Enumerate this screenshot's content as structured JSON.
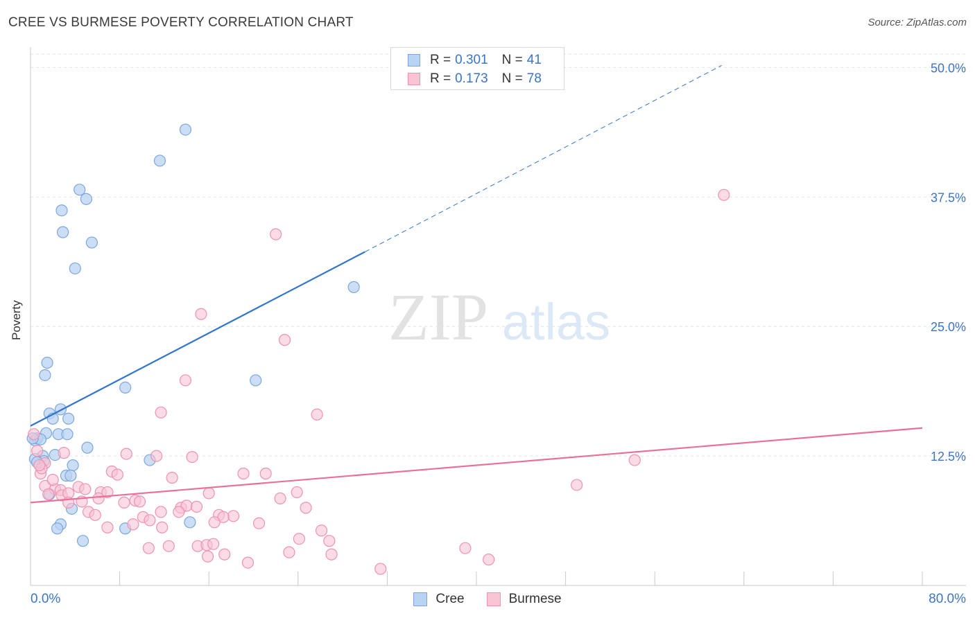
{
  "title": "CREE VS BURMESE POVERTY CORRELATION CHART",
  "source": "Source: ZipAtlas.com",
  "watermark": {
    "zip": "ZIP",
    "atlas": "atlas"
  },
  "legend": {
    "r_label": "R =",
    "n_label": "N =",
    "cree": {
      "r": "0.301",
      "n": "41"
    },
    "burmese": {
      "r": "0.173",
      "n": "78"
    }
  },
  "colors": {
    "cree_fill": "#b9d3f2",
    "cree_stroke": "#7ba7dd",
    "cree_line": "#2f74cf",
    "burmese_fill": "#f8c3d3",
    "burmese_stroke": "#ee92b0",
    "burmese_line": "#e8709a",
    "axis_text": "#3b74c9",
    "grid": "#e3e3e3"
  },
  "chart_data": {
    "type": "scatter",
    "title": "CREE VS BURMESE POVERTY CORRELATION CHART",
    "xlabel": "",
    "ylabel": "Poverty",
    "xlim": [
      0,
      80
    ],
    "ylim": [
      0,
      52.5
    ],
    "x_tick_labels": {
      "left": "0.0%",
      "right": "80.0%"
    },
    "y_ticks": [
      {
        "value": 12.5,
        "label": "12.5%"
      },
      {
        "value": 25.0,
        "label": "25.0%"
      },
      {
        "value": 37.5,
        "label": "37.5%"
      },
      {
        "value": 50.0,
        "label": "50.0%"
      }
    ],
    "legend_labels": [
      "Cree",
      "Burmese"
    ],
    "series": [
      {
        "name": "Cree",
        "trend": {
          "x0": 0,
          "y0": 15.4,
          "x1": 30.0,
          "y1": 32.2,
          "x_dash_end": 62.0,
          "y_dash_end": 50.2
        },
        "points": [
          [
            13.9,
            44.0
          ],
          [
            11.6,
            41.0
          ],
          [
            4.4,
            38.2
          ],
          [
            5.0,
            37.3
          ],
          [
            2.8,
            36.2
          ],
          [
            2.9,
            34.1
          ],
          [
            5.5,
            33.1
          ],
          [
            4.0,
            30.6
          ],
          [
            29.0,
            28.8
          ],
          [
            1.5,
            21.5
          ],
          [
            1.3,
            20.3
          ],
          [
            8.5,
            19.1
          ],
          [
            20.2,
            19.8
          ],
          [
            2.7,
            17.0
          ],
          [
            1.7,
            16.6
          ],
          [
            2.0,
            16.1
          ],
          [
            3.4,
            16.1
          ],
          [
            1.4,
            14.7
          ],
          [
            2.5,
            14.6
          ],
          [
            3.3,
            14.6
          ],
          [
            0.4,
            14.0
          ],
          [
            0.6,
            14.2
          ],
          [
            0.9,
            14.1
          ],
          [
            5.1,
            13.3
          ],
          [
            2.2,
            12.6
          ],
          [
            1.1,
            12.5
          ],
          [
            0.4,
            12.2
          ],
          [
            1.2,
            12.0
          ],
          [
            0.6,
            11.9
          ],
          [
            10.7,
            12.1
          ],
          [
            3.8,
            11.6
          ],
          [
            3.2,
            10.6
          ],
          [
            3.6,
            10.6
          ],
          [
            1.7,
            8.8
          ],
          [
            3.7,
            7.4
          ],
          [
            2.7,
            5.9
          ],
          [
            2.4,
            5.5
          ],
          [
            8.5,
            5.5
          ],
          [
            14.3,
            6.1
          ],
          [
            4.7,
            4.3
          ],
          [
            0.2,
            14.2
          ]
        ]
      },
      {
        "name": "Burmese",
        "trend": {
          "x0": 0,
          "y0": 8.0,
          "x1": 80.0,
          "y1": 15.2
        },
        "points": [
          [
            62.2,
            37.7
          ],
          [
            22.0,
            33.9
          ],
          [
            15.3,
            26.2
          ],
          [
            22.8,
            23.7
          ],
          [
            13.9,
            19.8
          ],
          [
            11.7,
            16.7
          ],
          [
            25.7,
            16.5
          ],
          [
            0.3,
            14.6
          ],
          [
            0.6,
            13.0
          ],
          [
            3.0,
            12.8
          ],
          [
            8.6,
            12.7
          ],
          [
            11.3,
            12.5
          ],
          [
            14.5,
            12.4
          ],
          [
            54.2,
            12.1
          ],
          [
            1.3,
            11.8
          ],
          [
            7.3,
            11.0
          ],
          [
            7.8,
            10.7
          ],
          [
            19.1,
            10.8
          ],
          [
            21.1,
            10.8
          ],
          [
            0.9,
            10.8
          ],
          [
            12.7,
            10.4
          ],
          [
            1.3,
            9.6
          ],
          [
            4.3,
            9.5
          ],
          [
            2.2,
            9.3
          ],
          [
            2.7,
            9.2
          ],
          [
            4.9,
            9.3
          ],
          [
            6.3,
            9.0
          ],
          [
            6.9,
            9.0
          ],
          [
            1.6,
            8.8
          ],
          [
            2.8,
            8.7
          ],
          [
            3.4,
            8.9
          ],
          [
            16.0,
            8.9
          ],
          [
            23.9,
            9.0
          ],
          [
            49.0,
            9.7
          ],
          [
            6.1,
            8.4
          ],
          [
            22.4,
            8.4
          ],
          [
            3.4,
            8.0
          ],
          [
            4.6,
            8.1
          ],
          [
            8.4,
            8.0
          ],
          [
            9.4,
            8.2
          ],
          [
            9.8,
            8.1
          ],
          [
            13.5,
            7.5
          ],
          [
            14.0,
            7.7
          ],
          [
            14.9,
            7.6
          ],
          [
            5.2,
            7.1
          ],
          [
            11.7,
            7.1
          ],
          [
            13.3,
            7.1
          ],
          [
            24.7,
            7.5
          ],
          [
            5.8,
            6.8
          ],
          [
            10.1,
            6.6
          ],
          [
            10.7,
            6.3
          ],
          [
            16.9,
            6.8
          ],
          [
            18.2,
            6.7
          ],
          [
            17.3,
            6.6
          ],
          [
            20.5,
            6.0
          ],
          [
            16.5,
            6.1
          ],
          [
            9.2,
            5.9
          ],
          [
            6.9,
            5.6
          ],
          [
            11.8,
            5.6
          ],
          [
            26.1,
            5.3
          ],
          [
            24.1,
            4.5
          ],
          [
            26.8,
            4.3
          ],
          [
            15.0,
            3.8
          ],
          [
            15.8,
            3.9
          ],
          [
            16.4,
            4.0
          ],
          [
            10.6,
            3.6
          ],
          [
            12.4,
            3.8
          ],
          [
            39.0,
            3.6
          ],
          [
            23.2,
            3.2
          ],
          [
            15.9,
            2.8
          ],
          [
            17.4,
            3.0
          ],
          [
            27.0,
            3.0
          ],
          [
            19.5,
            2.2
          ],
          [
            41.1,
            2.5
          ],
          [
            31.4,
            1.6
          ],
          [
            1.0,
            11.3
          ],
          [
            0.8,
            11.6
          ],
          [
            2.0,
            10.2
          ]
        ]
      }
    ]
  }
}
